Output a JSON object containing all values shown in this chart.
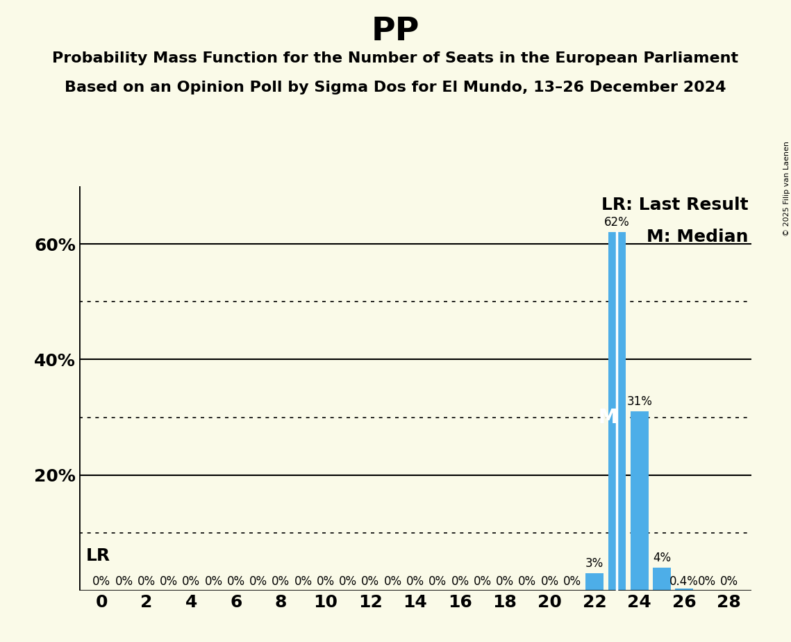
{
  "title": "PP",
  "subtitle_line1": "Probability Mass Function for the Number of Seats in the European Parliament",
  "subtitle_line2": "Based on an Opinion Poll by Sigma Dos for El Mundo, 13–26 December 2024",
  "background_color": "#FAFAE8",
  "bar_color": "#4DAEE8",
  "x_min": -1,
  "x_max": 29,
  "y_min": 0,
  "y_max": 0.7,
  "x_ticks": [
    0,
    2,
    4,
    6,
    8,
    10,
    12,
    14,
    16,
    18,
    20,
    22,
    24,
    26,
    28
  ],
  "y_ticks_solid": [
    0.2,
    0.4,
    0.6
  ],
  "y_ticks_dotted": [
    0.1,
    0.3,
    0.5
  ],
  "y_tick_positions": [
    0.2,
    0.4,
    0.6
  ],
  "y_tick_labels": [
    "20%",
    "40%",
    "60%"
  ],
  "seats": [
    0,
    1,
    2,
    3,
    4,
    5,
    6,
    7,
    8,
    9,
    10,
    11,
    12,
    13,
    14,
    15,
    16,
    17,
    18,
    19,
    20,
    21,
    22,
    23,
    24,
    25,
    26,
    27,
    28
  ],
  "probabilities": [
    0.0,
    0.0,
    0.0,
    0.0,
    0.0,
    0.0,
    0.0,
    0.0,
    0.0,
    0.0,
    0.0,
    0.0,
    0.0,
    0.0,
    0.0,
    0.0,
    0.0,
    0.0,
    0.0,
    0.0,
    0.0,
    0.0,
    0.03,
    0.62,
    0.31,
    0.04,
    0.004,
    0.0,
    0.0
  ],
  "bar_labels": [
    "0%",
    "0%",
    "0%",
    "0%",
    "0%",
    "0%",
    "0%",
    "0%",
    "0%",
    "0%",
    "0%",
    "0%",
    "0%",
    "0%",
    "0%",
    "0%",
    "0%",
    "0%",
    "0%",
    "0%",
    "0%",
    "0%",
    "3%",
    "62%",
    "31%",
    "4%",
    "0.4%",
    "0%",
    "0%"
  ],
  "lr_seat": 23,
  "median_seat": 23,
  "lr_label": "LR: Last Result",
  "median_label": "M: Median",
  "lr_text": "LR",
  "median_text": "M",
  "copyright": "© 2025 Filip van Laenen",
  "title_fontsize": 34,
  "subtitle_fontsize": 16,
  "tick_fontsize": 18,
  "bar_label_fontsize": 12,
  "legend_fontsize": 18,
  "lr_fontsize": 18,
  "median_fontsize": 20,
  "copyright_fontsize": 8
}
